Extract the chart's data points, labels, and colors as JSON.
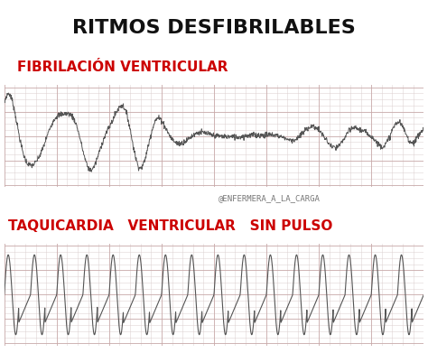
{
  "title": "RITMOS DESFIBRILABLES",
  "title_color": "#111111",
  "title_fontsize": 16,
  "label1": "FIBRILACIÓN VENTRICULAR",
  "label2": "TAQUICARDIA   VENTRICULAR   SIN PULSO",
  "label_color": "#cc0000",
  "label_fontsize": 11,
  "watermark": "@ENFERMERA_A_LA_CARGA",
  "watermark_color": "#777777",
  "watermark_fontsize": 6.5,
  "bg_color": "#ffffff",
  "strip_bg": "#ece8e8",
  "strip_line_color": "#555555",
  "grid_major_color": "#c8a8a8",
  "grid_minor_color": "#ddd0d0"
}
